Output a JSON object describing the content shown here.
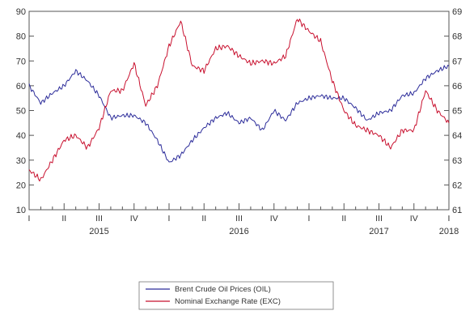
{
  "chart_data": {
    "type": "line",
    "title": "",
    "xlabel": "",
    "ylabel": "",
    "grid": false,
    "legend_placement": "bottom-center",
    "x_quarter_labels": [
      "I",
      "II",
      "III",
      "IV",
      "I",
      "II",
      "III",
      "IV",
      "I",
      "II",
      "III",
      "IV",
      "I"
    ],
    "x_year_labels": [
      "2015",
      "2016",
      "2017",
      "2018"
    ],
    "left_axis": {
      "ylim": [
        10,
        90
      ],
      "ticks": [
        10,
        20,
        30,
        40,
        50,
        60,
        70,
        80,
        90
      ]
    },
    "right_axis": {
      "ylim": [
        61,
        69
      ],
      "ticks": [
        61,
        62,
        63,
        64,
        65,
        66,
        67,
        68,
        69
      ]
    },
    "series": [
      {
        "name": "Brent Crude Oil Prices (OIL)",
        "axis": "left",
        "color": "#2c2c9a",
        "x": [
          "2015-01",
          "2015-02",
          "2015-03",
          "2015-04",
          "2015-05",
          "2015-06",
          "2015-07",
          "2015-08",
          "2015-09",
          "2015-10",
          "2015-11",
          "2015-12",
          "2016-01",
          "2016-02",
          "2016-03",
          "2016-04",
          "2016-05",
          "2016-06",
          "2016-07",
          "2016-08",
          "2016-09",
          "2016-10",
          "2016-11",
          "2016-12",
          "2017-01",
          "2017-02",
          "2017-03",
          "2017-04",
          "2017-05",
          "2017-06",
          "2017-07",
          "2017-08",
          "2017-09",
          "2017-10",
          "2017-11",
          "2017-12",
          "2018-01"
        ],
        "values": [
          60,
          53,
          57,
          60,
          66,
          62,
          56,
          47,
          48,
          48,
          45,
          38,
          29,
          32,
          38,
          43,
          47,
          49,
          45,
          47,
          42,
          50,
          46,
          53,
          55,
          56,
          55,
          55,
          51,
          46,
          49,
          50,
          56,
          57,
          63,
          66,
          68
        ]
      },
      {
        "name": "Nominal Exchange Rate (EXC)",
        "axis": "right",
        "color": "#c8102e",
        "x": [
          "2015-01",
          "2015-02",
          "2015-03",
          "2015-04",
          "2015-05",
          "2015-06",
          "2015-07",
          "2015-08",
          "2015-09",
          "2015-10",
          "2015-11",
          "2015-12",
          "2016-01",
          "2016-02",
          "2016-03",
          "2016-04",
          "2016-05",
          "2016-06",
          "2016-07",
          "2016-08",
          "2016-09",
          "2016-10",
          "2016-11",
          "2016-12",
          "2017-01",
          "2017-02",
          "2017-03",
          "2017-04",
          "2017-05",
          "2017-06",
          "2017-07",
          "2017-08",
          "2017-09",
          "2017-10",
          "2017-11",
          "2017-12",
          "2018-01"
        ],
        "values": [
          62.6,
          62.2,
          63.0,
          63.8,
          64.0,
          63.5,
          64.3,
          65.8,
          65.8,
          66.9,
          65.2,
          66.0,
          67.6,
          68.6,
          66.8,
          66.6,
          67.5,
          67.6,
          67.2,
          66.9,
          67.0,
          66.9,
          67.2,
          68.7,
          68.2,
          67.8,
          66.2,
          65.0,
          64.4,
          64.2,
          64.0,
          63.5,
          64.2,
          64.2,
          65.8,
          65.0,
          64.5
        ]
      }
    ]
  }
}
